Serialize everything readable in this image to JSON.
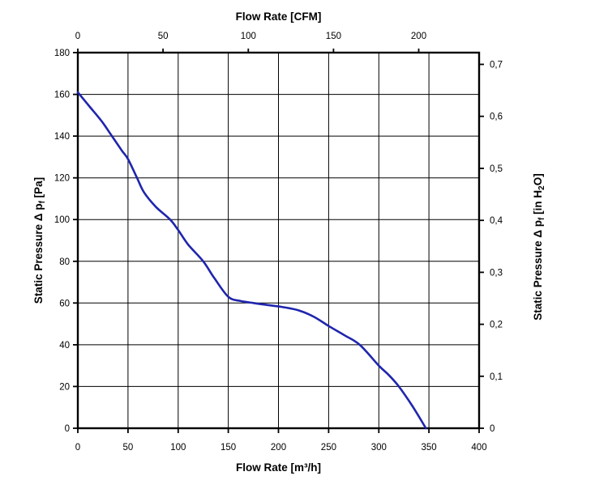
{
  "chart_data": {
    "type": "line",
    "grid": {
      "x_values_m3h": [
        50,
        100,
        150,
        200,
        250,
        300,
        350
      ],
      "y_values_pa": [
        20,
        40,
        60,
        80,
        100,
        120,
        140,
        160
      ]
    },
    "axes": {
      "top": {
        "title": "Flow Rate [CFM]",
        "m3h_per_cfm": 1.699,
        "ticks": [
          {
            "v": 0,
            "label": "0"
          },
          {
            "v": 50,
            "label": "50"
          },
          {
            "v": 100,
            "label": "100"
          },
          {
            "v": 150,
            "label": "150"
          },
          {
            "v": 200,
            "label": "200"
          }
        ]
      },
      "bottom": {
        "title": "Flow Rate [m³/h]",
        "min": 0,
        "max": 400,
        "ticks": [
          {
            "v": 0,
            "label": "0"
          },
          {
            "v": 50,
            "label": "50"
          },
          {
            "v": 100,
            "label": "100"
          },
          {
            "v": 150,
            "label": "150"
          },
          {
            "v": 200,
            "label": "200"
          },
          {
            "v": 250,
            "label": "250"
          },
          {
            "v": 300,
            "label": "300"
          },
          {
            "v": 350,
            "label": "350"
          },
          {
            "v": 400,
            "label": "400"
          }
        ]
      },
      "left": {
        "title_parts": [
          {
            "t": "Static Pressure Δ p"
          },
          {
            "t": "f",
            "sub": true
          },
          {
            "t": " [Pa]"
          }
        ],
        "min": 0,
        "max": 180,
        "ticks": [
          {
            "v": 0,
            "label": "0"
          },
          {
            "v": 20,
            "label": "20"
          },
          {
            "v": 40,
            "label": "40"
          },
          {
            "v": 60,
            "label": "60"
          },
          {
            "v": 80,
            "label": "80"
          },
          {
            "v": 100,
            "label": "100"
          },
          {
            "v": 120,
            "label": "120"
          },
          {
            "v": 140,
            "label": "140"
          },
          {
            "v": 160,
            "label": "160"
          },
          {
            "v": 180,
            "label": "180"
          }
        ]
      },
      "right": {
        "title_parts": [
          {
            "t": "Static Pressure Δ p"
          },
          {
            "t": "f",
            "sub": true
          },
          {
            "t": " [in H"
          },
          {
            "t": "2",
            "sub": true
          },
          {
            "t": "O]"
          }
        ],
        "pa_per_in_h2o": 249.089,
        "ticks": [
          {
            "v": 0,
            "label": "0"
          },
          {
            "v": 0.1,
            "label": "0,1"
          },
          {
            "v": 0.2,
            "label": "0,2"
          },
          {
            "v": 0.3,
            "label": "0,3"
          },
          {
            "v": 0.4,
            "label": "0,4"
          },
          {
            "v": 0.5,
            "label": "0,5"
          },
          {
            "v": 0.6,
            "label": "0,6"
          },
          {
            "v": 0.7,
            "label": "0,7"
          }
        ]
      }
    },
    "series": [
      {
        "name": "static-pressure-curve",
        "color": "#1f25ad",
        "stroke_width": 2.6,
        "points_m3h_pa": [
          [
            0,
            161
          ],
          [
            12,
            154
          ],
          [
            24,
            147
          ],
          [
            34,
            140
          ],
          [
            44,
            133
          ],
          [
            50,
            129
          ],
          [
            59,
            120
          ],
          [
            66,
            113
          ],
          [
            78,
            106
          ],
          [
            92,
            100
          ],
          [
            100,
            95
          ],
          [
            110,
            88
          ],
          [
            125,
            80
          ],
          [
            136,
            72
          ],
          [
            150,
            63
          ],
          [
            162,
            61
          ],
          [
            175,
            60
          ],
          [
            190,
            59
          ],
          [
            205,
            58
          ],
          [
            220,
            56.5
          ],
          [
            235,
            53.5
          ],
          [
            250,
            49
          ],
          [
            266,
            44.5
          ],
          [
            281,
            40
          ],
          [
            300,
            30
          ],
          [
            310,
            25.5
          ],
          [
            320,
            20
          ],
          [
            333,
            11
          ],
          [
            347,
            0
          ]
        ]
      }
    ],
    "colors": {
      "axis": "#000000",
      "grid": "#000000",
      "text": "#000000",
      "background": "#ffffff"
    }
  }
}
